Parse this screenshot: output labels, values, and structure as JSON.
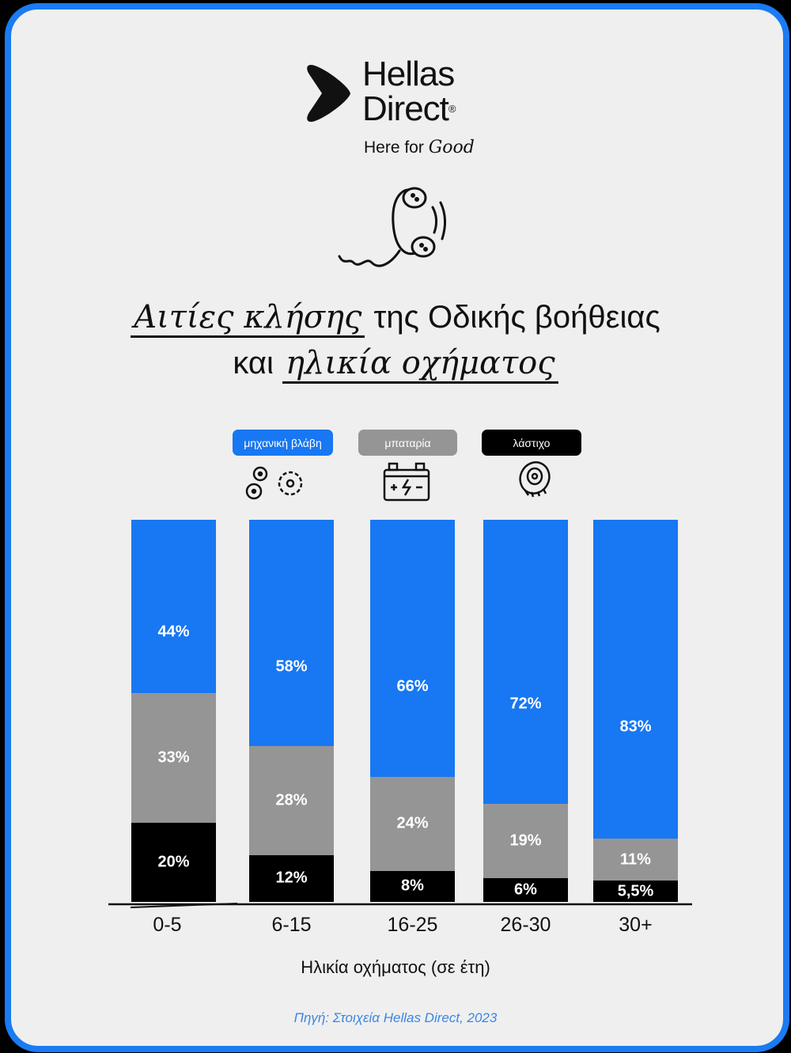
{
  "logo": {
    "name_line1": "Hellas",
    "name_line2": "Direct",
    "registered": "®",
    "tagline_prefix": "Here for",
    "tagline_script": "Good"
  },
  "title": {
    "handwritten_1": "Αιτίες κλήσης",
    "line1_rest": "της Οδικής βοήθειας",
    "line2_prefix": "και",
    "handwritten_2": "ηλικία οχήματος"
  },
  "colors": {
    "mechanical": "#1877f2",
    "battery": "#959595",
    "tire": "#000000",
    "frame": "#1a7bf2",
    "background": "#efefef"
  },
  "chart_data": {
    "type": "bar",
    "stacked": true,
    "categories": [
      "0-5",
      "6-15",
      "16-25",
      "26-30",
      "30+"
    ],
    "series": [
      {
        "name": "μηχανική βλάβη",
        "color": "#1877f2",
        "icon": "gears-icon",
        "values": [
          44,
          58,
          66,
          72,
          83
        ],
        "labels": [
          "44%",
          "58%",
          "66%",
          "72%",
          "83%"
        ]
      },
      {
        "name": "μπαταρία",
        "color": "#959595",
        "icon": "battery-icon",
        "values": [
          33,
          28,
          24,
          19,
          11
        ],
        "labels": [
          "33%",
          "28%",
          "24%",
          "19%",
          "11%"
        ]
      },
      {
        "name": "λάστιχο",
        "color": "#000000",
        "icon": "tire-icon",
        "values": [
          20,
          12,
          8,
          6,
          5.5
        ],
        "labels": [
          "20%",
          "12%",
          "8%",
          "6%",
          "5,5%"
        ]
      }
    ],
    "xlabel": "Ηλικία οχήματος (σε έτη)",
    "ylabel": "",
    "legend": "top",
    "grid": false
  },
  "source": "Πηγή: Στοιχεία Hellas Direct, 2023"
}
